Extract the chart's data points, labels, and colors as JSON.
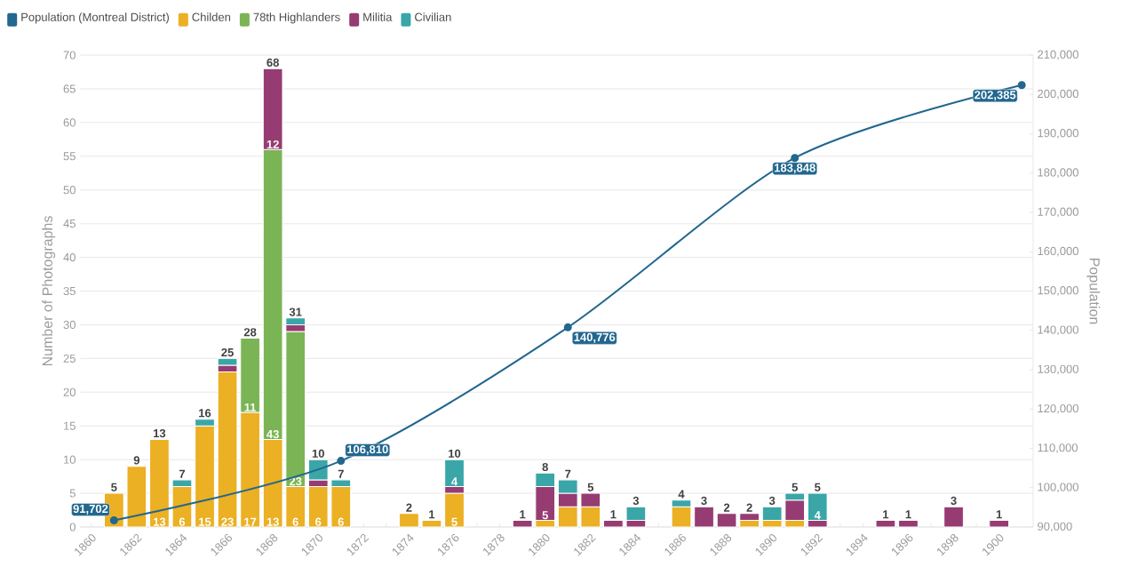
{
  "chart_data": {
    "type": "bar",
    "stacked": true,
    "ylabel": "Number of Photographs",
    "y2label": "Population",
    "grid": "y",
    "legend": "top",
    "x": [
      1861,
      1862,
      1863,
      1864,
      1865,
      1866,
      1867,
      1868,
      1869,
      1870,
      1871,
      1872,
      1873,
      1874,
      1875,
      1876,
      1877,
      1878,
      1879,
      1880,
      1881,
      1882,
      1883,
      1884,
      1885,
      1886,
      1887,
      1888,
      1889,
      1890,
      1891,
      1892,
      1893,
      1894,
      1895,
      1896,
      1897,
      1898,
      1899,
      1900
    ],
    "xlim": [
      1859.5,
      1901.5
    ],
    "xticks": [
      1860,
      {
        "value": 1861,
        "label": null
      },
      1862,
      {
        "value": 1863,
        "label": null
      },
      1864,
      {
        "value": 1865,
        "label": null
      },
      1866,
      {
        "value": 1867,
        "label": null
      },
      1868,
      {
        "value": 1869,
        "label": null
      },
      1870,
      {
        "value": 1871,
        "label": null
      },
      1872,
      {
        "value": 1873,
        "label": null
      },
      1874,
      {
        "value": 1875,
        "label": null
      },
      1876,
      {
        "value": 1877,
        "label": null
      },
      1878,
      {
        "value": 1879,
        "label": null
      },
      1880,
      {
        "value": 1881,
        "label": null
      },
      1882,
      {
        "value": 1883,
        "label": null
      },
      1884,
      {
        "value": 1885,
        "label": null
      },
      1886,
      {
        "value": 1887,
        "label": null
      },
      1888,
      {
        "value": 1889,
        "label": null
      },
      1890,
      {
        "value": 1891,
        "label": null
      },
      1892,
      {
        "value": 1893,
        "label": null
      },
      1894,
      {
        "value": 1895,
        "label": null
      },
      1896,
      {
        "value": 1897,
        "label": null
      },
      1898,
      {
        "value": 1899,
        "label": null
      },
      1900
    ],
    "ylim": [
      0,
      70
    ],
    "yticks": [
      0,
      5,
      10,
      15,
      20,
      25,
      30,
      35,
      40,
      45,
      50,
      55,
      60,
      65,
      70
    ],
    "y2lim": [
      90000,
      210000
    ],
    "y2ticks": [
      {
        "value": 90000,
        "label": "90,000"
      },
      {
        "value": 100000,
        "label": "100,000"
      },
      {
        "value": 110000,
        "label": "110,000"
      },
      {
        "value": 120000,
        "label": "120,000"
      },
      {
        "value": 130000,
        "label": "130,000"
      },
      {
        "value": 140000,
        "label": "140,000"
      },
      {
        "value": 150000,
        "label": "150,000"
      },
      {
        "value": 160000,
        "label": "160,000"
      },
      {
        "value": 170000,
        "label": "170,000"
      },
      {
        "value": 180000,
        "label": "180,000"
      },
      {
        "value": 190000,
        "label": "190,000"
      },
      {
        "value": 200000,
        "label": "200,000"
      },
      {
        "value": 210000,
        "label": "210,000"
      }
    ],
    "series": [
      {
        "name": "Population (Montreal District)",
        "type": "line",
        "axis": "y2",
        "color": "#22678f",
        "marker": "circle",
        "x": [
          1861,
          1871,
          1881,
          1891,
          1901
        ],
        "values": [
          91702,
          106810,
          140776,
          183848,
          202385
        ],
        "value_labels": [
          "91,702",
          "106,810",
          "140,776",
          "183,848",
          "202,385"
        ]
      },
      {
        "name": "Childen",
        "color": "#ebb023",
        "values": [
          5,
          9,
          13,
          6,
          15,
          23,
          17,
          13,
          6,
          6,
          6,
          null,
          null,
          2,
          1,
          5,
          null,
          null,
          null,
          1,
          3,
          3,
          null,
          null,
          null,
          3,
          null,
          null,
          1,
          1,
          1,
          null,
          null,
          null,
          null,
          null,
          null,
          null,
          null,
          null
        ],
        "value_labels": [
          null,
          null,
          "13",
          "6",
          "15",
          "23",
          "17",
          "13",
          "6",
          "6",
          "6",
          null,
          null,
          null,
          null,
          "5",
          null,
          null,
          null,
          null,
          null,
          null,
          null,
          null,
          null,
          null,
          null,
          null,
          null,
          null,
          null,
          null,
          null,
          null,
          null,
          null,
          null,
          null,
          null,
          null
        ]
      },
      {
        "name": "78th Highlanders",
        "color": "#7bb455",
        "values": [
          null,
          null,
          null,
          null,
          null,
          null,
          11,
          43,
          23,
          null,
          null,
          null,
          null,
          null,
          null,
          null,
          null,
          null,
          null,
          null,
          null,
          null,
          null,
          null,
          null,
          null,
          null,
          null,
          null,
          null,
          null,
          null,
          null,
          null,
          null,
          null,
          null,
          null,
          null,
          null
        ],
        "value_labels": [
          null,
          null,
          null,
          null,
          null,
          null,
          "11",
          "43",
          "23",
          null,
          null,
          null,
          null,
          null,
          null,
          null,
          null,
          null,
          null,
          null,
          null,
          null,
          null,
          null,
          null,
          null,
          null,
          null,
          null,
          null,
          null,
          null,
          null,
          null,
          null,
          null,
          null,
          null,
          null,
          null
        ]
      },
      {
        "name": "Militia",
        "color": "#963c72",
        "values": [
          null,
          null,
          null,
          null,
          null,
          1,
          null,
          12,
          1,
          1,
          null,
          null,
          null,
          null,
          null,
          1,
          null,
          null,
          1,
          5,
          2,
          2,
          1,
          1,
          null,
          null,
          3,
          2,
          1,
          null,
          3,
          1,
          null,
          null,
          1,
          1,
          null,
          3,
          null,
          1
        ],
        "value_labels": [
          null,
          null,
          null,
          null,
          null,
          null,
          null,
          "12",
          null,
          null,
          null,
          null,
          null,
          null,
          null,
          null,
          null,
          null,
          null,
          "5",
          null,
          null,
          null,
          null,
          null,
          null,
          null,
          null,
          null,
          null,
          null,
          null,
          null,
          null,
          null,
          null,
          null,
          null,
          null,
          null
        ]
      },
      {
        "name": "Civilian",
        "color": "#3aa6a8",
        "values": [
          null,
          null,
          null,
          1,
          1,
          1,
          null,
          null,
          1,
          3,
          1,
          null,
          null,
          null,
          null,
          4,
          null,
          null,
          null,
          2,
          2,
          null,
          null,
          2,
          null,
          1,
          null,
          null,
          null,
          2,
          1,
          4,
          null,
          null,
          null,
          null,
          null,
          null,
          null,
          null
        ],
        "value_labels": [
          null,
          null,
          null,
          null,
          null,
          null,
          null,
          null,
          null,
          null,
          null,
          null,
          null,
          null,
          null,
          "4",
          null,
          null,
          null,
          null,
          null,
          null,
          null,
          null,
          null,
          null,
          null,
          null,
          null,
          null,
          null,
          "4",
          null,
          null,
          null,
          null,
          null,
          null,
          null,
          null
        ]
      }
    ],
    "totals": [
      "5",
      "9",
      "13",
      "7",
      "16",
      "25",
      "28",
      "68",
      "31",
      "10",
      "7",
      null,
      null,
      "2",
      "1",
      "10",
      null,
      null,
      "1",
      "8",
      "7",
      "5",
      "1",
      "3",
      null,
      "4",
      "3",
      "2",
      "2",
      "3",
      "5",
      "5",
      null,
      null,
      "1",
      "1",
      null,
      "3",
      null,
      "1"
    ]
  }
}
